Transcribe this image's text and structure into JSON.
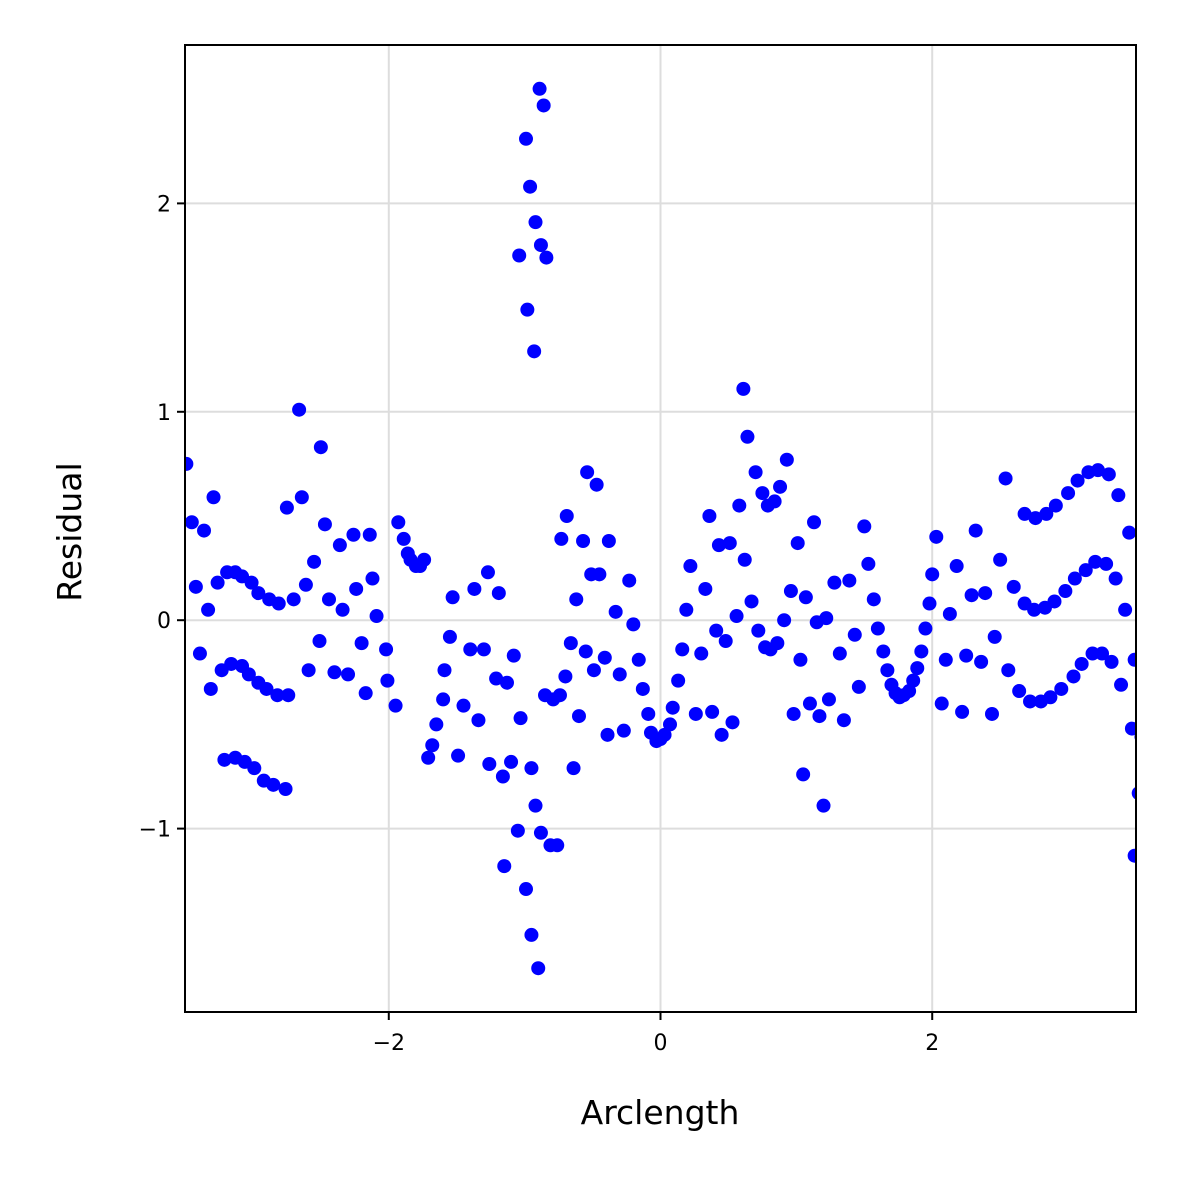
{
  "chart_data": {
    "type": "scatter",
    "title": "",
    "xlabel": "Arclength",
    "ylabel": "Residual",
    "xlim": [
      -3.5,
      3.5
    ],
    "ylim": [
      -1.88,
      2.76
    ],
    "grid": true,
    "xticks": [
      -2,
      0,
      2
    ],
    "yticks": [
      -1,
      0,
      1,
      2
    ],
    "xtick_labels": [
      "−2",
      "0",
      "2"
    ],
    "ytick_labels": [
      "−1",
      "0",
      "1",
      "2"
    ],
    "marker_color": "#0000ff",
    "grid_color": "#dddddd",
    "points": [
      [
        -3.49,
        0.75
      ],
      [
        -3.45,
        0.47
      ],
      [
        -3.42,
        0.16
      ],
      [
        -3.39,
        -0.16
      ],
      [
        -3.36,
        0.43
      ],
      [
        -3.33,
        0.05
      ],
      [
        -3.31,
        -0.33
      ],
      [
        -3.29,
        0.59
      ],
      [
        -3.26,
        0.18
      ],
      [
        -3.23,
        -0.24
      ],
      [
        -3.21,
        -0.67
      ],
      [
        -3.19,
        0.23
      ],
      [
        -3.16,
        -0.21
      ],
      [
        -3.13,
        0.23
      ],
      [
        -3.13,
        -0.66
      ],
      [
        -3.08,
        -0.22
      ],
      [
        -3.08,
        0.21
      ],
      [
        -3.06,
        -0.68
      ],
      [
        -3.03,
        -0.26
      ],
      [
        -3.01,
        0.18
      ],
      [
        -2.99,
        -0.71
      ],
      [
        -2.96,
        -0.3
      ],
      [
        -2.96,
        0.13
      ],
      [
        -2.92,
        -0.77
      ],
      [
        -2.9,
        -0.33
      ],
      [
        -2.88,
        0.1
      ],
      [
        -2.85,
        -0.79
      ],
      [
        -2.82,
        -0.36
      ],
      [
        -2.81,
        0.08
      ],
      [
        -2.76,
        -0.81
      ],
      [
        -2.74,
        -0.36
      ],
      [
        -2.75,
        0.54
      ],
      [
        -2.7,
        0.1
      ],
      [
        -2.66,
        1.01
      ],
      [
        -2.64,
        0.59
      ],
      [
        -2.61,
        0.17
      ],
      [
        -2.59,
        -0.24
      ],
      [
        -2.55,
        0.28
      ],
      [
        -2.51,
        -0.1
      ],
      [
        -2.5,
        0.83
      ],
      [
        -2.47,
        0.46
      ],
      [
        -2.44,
        0.1
      ],
      [
        -2.4,
        -0.25
      ],
      [
        -2.36,
        0.36
      ],
      [
        -2.34,
        0.05
      ],
      [
        -2.3,
        -0.26
      ],
      [
        -2.26,
        0.41
      ],
      [
        -2.24,
        0.15
      ],
      [
        -2.2,
        -0.11
      ],
      [
        -2.17,
        -0.35
      ],
      [
        -2.14,
        0.41
      ],
      [
        -2.12,
        0.2
      ],
      [
        -2.09,
        0.02
      ],
      [
        -2.02,
        -0.14
      ],
      [
        -2.01,
        -0.29
      ],
      [
        -1.95,
        -0.41
      ],
      [
        -1.93,
        0.47
      ],
      [
        -1.89,
        0.39
      ],
      [
        -1.86,
        0.32
      ],
      [
        -1.84,
        0.29
      ],
      [
        -1.8,
        0.26
      ],
      [
        -1.77,
        0.26
      ],
      [
        -1.74,
        0.29
      ],
      [
        -1.71,
        -0.66
      ],
      [
        -1.68,
        -0.6
      ],
      [
        -1.65,
        -0.5
      ],
      [
        -1.6,
        -0.38
      ],
      [
        -1.59,
        -0.24
      ],
      [
        -1.55,
        -0.08
      ],
      [
        -1.53,
        0.11
      ],
      [
        -1.49,
        -0.65
      ],
      [
        -1.45,
        -0.41
      ],
      [
        -1.4,
        -0.14
      ],
      [
        -1.37,
        0.15
      ],
      [
        -1.34,
        -0.48
      ],
      [
        -1.3,
        -0.14
      ],
      [
        -1.27,
        0.23
      ],
      [
        -1.26,
        -0.69
      ],
      [
        -1.21,
        -0.28
      ],
      [
        -1.19,
        0.13
      ],
      [
        -1.16,
        -0.75
      ],
      [
        -1.15,
        -1.18
      ],
      [
        -1.13,
        -0.3
      ],
      [
        -1.1,
        -0.68
      ],
      [
        -1.08,
        -0.17
      ],
      [
        -1.05,
        -1.01
      ],
      [
        -1.03,
        -0.47
      ],
      [
        -1.04,
        1.75
      ],
      [
        -0.99,
        -1.29
      ],
      [
        -0.99,
        2.31
      ],
      [
        -0.98,
        1.49
      ],
      [
        -0.96,
        2.08
      ],
      [
        -0.95,
        -0.71
      ],
      [
        -0.95,
        -1.51
      ],
      [
        -0.93,
        1.29
      ],
      [
        -0.92,
        -0.89
      ],
      [
        -0.92,
        1.91
      ],
      [
        -0.9,
        -1.67
      ],
      [
        -0.89,
        2.55
      ],
      [
        -0.88,
        1.8
      ],
      [
        -0.88,
        -1.02
      ],
      [
        -0.85,
        -0.36
      ],
      [
        -0.86,
        2.47
      ],
      [
        -0.84,
        1.74
      ],
      [
        -0.81,
        -1.08
      ],
      [
        -0.79,
        -0.38
      ],
      [
        -0.76,
        -1.08
      ],
      [
        -0.74,
        -0.36
      ],
      [
        -0.73,
        0.39
      ],
      [
        -0.7,
        -0.27
      ],
      [
        -0.69,
        0.5
      ],
      [
        -0.66,
        -0.11
      ],
      [
        -0.64,
        -0.71
      ],
      [
        -0.62,
        0.1
      ],
      [
        -0.6,
        -0.46
      ],
      [
        -0.57,
        0.38
      ],
      [
        -0.55,
        -0.15
      ],
      [
        -0.54,
        0.71
      ],
      [
        -0.51,
        0.22
      ],
      [
        -0.49,
        -0.24
      ],
      [
        -0.47,
        0.65
      ],
      [
        -0.45,
        0.22
      ],
      [
        -0.41,
        -0.18
      ],
      [
        -0.39,
        -0.55
      ],
      [
        -0.38,
        0.38
      ],
      [
        -0.33,
        0.04
      ],
      [
        -0.3,
        -0.26
      ],
      [
        -0.27,
        -0.53
      ],
      [
        -0.23,
        0.19
      ],
      [
        -0.2,
        -0.02
      ],
      [
        -0.16,
        -0.19
      ],
      [
        -0.13,
        -0.33
      ],
      [
        -0.09,
        -0.45
      ],
      [
        -0.07,
        -0.54
      ],
      [
        -0.03,
        -0.58
      ],
      [
        0.0,
        -0.57
      ],
      [
        0.03,
        -0.55
      ],
      [
        0.07,
        -0.5
      ],
      [
        0.09,
        -0.42
      ],
      [
        0.13,
        -0.29
      ],
      [
        0.16,
        -0.14
      ],
      [
        0.19,
        0.05
      ],
      [
        0.22,
        0.26
      ],
      [
        0.26,
        -0.45
      ],
      [
        0.3,
        -0.16
      ],
      [
        0.33,
        0.15
      ],
      [
        0.36,
        0.5
      ],
      [
        0.38,
        -0.44
      ],
      [
        0.41,
        -0.05
      ],
      [
        0.43,
        0.36
      ],
      [
        0.45,
        -0.55
      ],
      [
        0.48,
        -0.1
      ],
      [
        0.51,
        0.37
      ],
      [
        0.53,
        -0.49
      ],
      [
        0.56,
        0.02
      ],
      [
        0.58,
        0.55
      ],
      [
        0.61,
        1.11
      ],
      [
        0.62,
        0.29
      ],
      [
        0.64,
        0.88
      ],
      [
        0.67,
        0.09
      ],
      [
        0.7,
        0.71
      ],
      [
        0.72,
        -0.05
      ],
      [
        0.75,
        0.61
      ],
      [
        0.77,
        -0.13
      ],
      [
        0.79,
        0.55
      ],
      [
        0.81,
        -0.14
      ],
      [
        0.84,
        0.57
      ],
      [
        0.86,
        -0.11
      ],
      [
        0.88,
        0.64
      ],
      [
        0.91,
        0.0
      ],
      [
        0.93,
        0.77
      ],
      [
        0.96,
        0.14
      ],
      [
        0.98,
        -0.45
      ],
      [
        1.01,
        0.37
      ],
      [
        1.03,
        -0.19
      ],
      [
        1.05,
        -0.74
      ],
      [
        1.07,
        0.11
      ],
      [
        1.1,
        -0.4
      ],
      [
        1.13,
        0.47
      ],
      [
        1.15,
        -0.01
      ],
      [
        1.17,
        -0.46
      ],
      [
        1.2,
        -0.89
      ],
      [
        1.22,
        0.01
      ],
      [
        1.24,
        -0.38
      ],
      [
        1.28,
        0.18
      ],
      [
        1.32,
        -0.16
      ],
      [
        1.35,
        -0.48
      ],
      [
        1.39,
        0.19
      ],
      [
        1.43,
        -0.07
      ],
      [
        1.46,
        -0.32
      ],
      [
        1.5,
        0.45
      ],
      [
        1.53,
        0.27
      ],
      [
        1.57,
        0.1
      ],
      [
        1.6,
        -0.04
      ],
      [
        1.64,
        -0.15
      ],
      [
        1.67,
        -0.24
      ],
      [
        1.7,
        -0.31
      ],
      [
        1.73,
        -0.35
      ],
      [
        1.76,
        -0.37
      ],
      [
        1.79,
        -0.36
      ],
      [
        1.83,
        -0.34
      ],
      [
        1.86,
        -0.29
      ],
      [
        1.89,
        -0.23
      ],
      [
        1.92,
        -0.15
      ],
      [
        1.95,
        -0.04
      ],
      [
        1.98,
        0.08
      ],
      [
        2.0,
        0.22
      ],
      [
        2.03,
        0.4
      ],
      [
        2.07,
        -0.4
      ],
      [
        2.1,
        -0.19
      ],
      [
        2.13,
        0.03
      ],
      [
        2.18,
        0.26
      ],
      [
        2.22,
        -0.44
      ],
      [
        2.25,
        -0.17
      ],
      [
        2.29,
        0.12
      ],
      [
        2.32,
        0.43
      ],
      [
        2.36,
        -0.2
      ],
      [
        2.39,
        0.13
      ],
      [
        2.44,
        -0.45
      ],
      [
        2.46,
        -0.08
      ],
      [
        2.5,
        0.29
      ],
      [
        2.54,
        0.68
      ],
      [
        2.56,
        -0.24
      ],
      [
        2.6,
        0.16
      ],
      [
        2.64,
        -0.34
      ],
      [
        2.68,
        0.08
      ],
      [
        2.68,
        0.51
      ],
      [
        2.72,
        -0.39
      ],
      [
        2.75,
        0.05
      ],
      [
        2.76,
        0.49
      ],
      [
        2.8,
        -0.39
      ],
      [
        2.83,
        0.06
      ],
      [
        2.84,
        0.51
      ],
      [
        2.87,
        -0.37
      ],
      [
        2.9,
        0.09
      ],
      [
        2.91,
        0.55
      ],
      [
        2.95,
        -0.33
      ],
      [
        2.98,
        0.14
      ],
      [
        3.0,
        0.61
      ],
      [
        3.04,
        -0.27
      ],
      [
        3.05,
        0.2
      ],
      [
        3.07,
        0.67
      ],
      [
        3.1,
        -0.21
      ],
      [
        3.13,
        0.24
      ],
      [
        3.15,
        0.71
      ],
      [
        3.18,
        -0.16
      ],
      [
        3.2,
        0.28
      ],
      [
        3.22,
        0.72
      ],
      [
        3.25,
        -0.16
      ],
      [
        3.28,
        0.27
      ],
      [
        3.3,
        0.7
      ],
      [
        3.32,
        -0.2
      ],
      [
        3.35,
        0.2
      ],
      [
        3.37,
        0.6
      ],
      [
        3.39,
        -0.31
      ],
      [
        3.42,
        0.05
      ],
      [
        3.45,
        0.42
      ],
      [
        3.47,
        -0.52
      ],
      [
        3.49,
        -0.19
      ],
      [
        3.49,
        -1.13
      ],
      [
        3.52,
        -0.83
      ],
      [
        3.54,
        -0.56
      ]
    ]
  }
}
